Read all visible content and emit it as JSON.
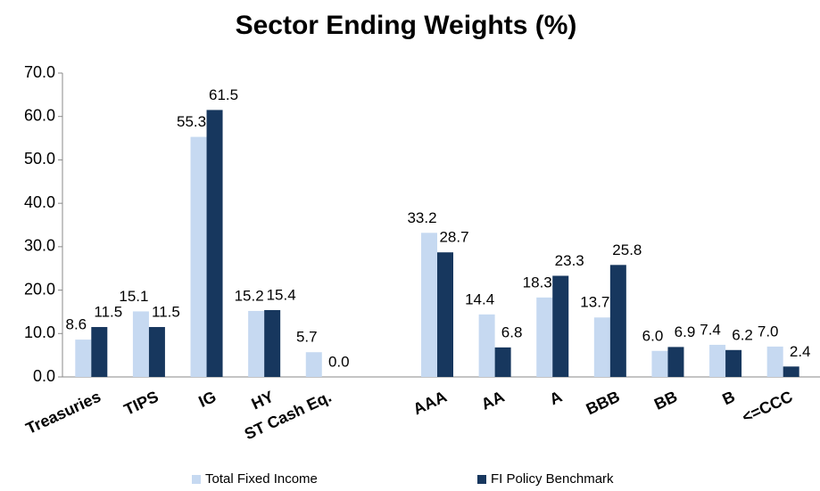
{
  "chart_data": {
    "type": "bar",
    "title": "Sector Ending Weights (%)",
    "categories": [
      "Treasuries",
      "TIPS",
      "IG",
      "HY",
      "ST Cash Eq.",
      null,
      "AAA",
      "AA",
      "A",
      "BBB",
      "BB",
      "B",
      "<=CCC"
    ],
    "series": [
      {
        "name": "Total Fixed Income",
        "color": "#c6d9f1",
        "values": [
          8.6,
          15.1,
          55.3,
          15.2,
          5.7,
          null,
          33.2,
          14.4,
          18.3,
          13.7,
          6.0,
          7.4,
          7.0
        ],
        "value_labels": [
          "8.6",
          "15.1",
          "55.3",
          "15.2",
          "5.7",
          null,
          "33.2",
          "14.4",
          "18.3",
          "13.7",
          "6.0",
          "7.4",
          "7.0"
        ]
      },
      {
        "name": "FI Policy Benchmark",
        "color": "#17375e",
        "values": [
          11.5,
          11.5,
          61.5,
          15.4,
          0.0,
          null,
          28.7,
          6.8,
          23.3,
          25.8,
          6.9,
          6.2,
          2.4
        ],
        "value_labels": [
          "11.5",
          "11.5",
          "61.5",
          "15.4",
          "0.0",
          null,
          "28.7",
          "6.8",
          "23.3",
          "25.8",
          "6.9",
          "6.2",
          "2.4"
        ]
      }
    ],
    "ylim": [
      0,
      70
    ],
    "yticks": [
      {
        "value": 0,
        "label": "0.0"
      },
      {
        "value": 10,
        "label": "10.0"
      },
      {
        "value": 20,
        "label": "20.0"
      },
      {
        "value": 30,
        "label": "30.0"
      },
      {
        "value": 40,
        "label": "40.0"
      },
      {
        "value": 50,
        "label": "50.0"
      },
      {
        "value": 60,
        "label": "60.0"
      },
      {
        "value": 70,
        "label": "70.0"
      }
    ],
    "grid": false,
    "legend": "bottom"
  }
}
